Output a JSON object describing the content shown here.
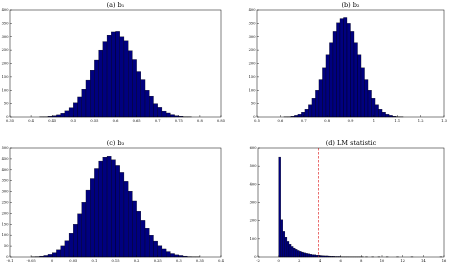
{
  "chart_data": [
    {
      "type": "histogram",
      "title": "(a) b₁",
      "color": "#00007f",
      "edgecolor": "#000000",
      "bins": [
        0.4,
        0.41,
        0.42,
        0.43,
        0.44,
        0.45,
        0.46,
        0.47,
        0.48,
        0.49,
        0.5,
        0.51,
        0.52,
        0.53,
        0.54,
        0.55,
        0.56,
        0.57,
        0.58,
        0.59,
        0.6,
        0.61,
        0.62,
        0.63,
        0.64,
        0.65,
        0.66,
        0.67,
        0.68,
        0.69,
        0.7,
        0.71,
        0.72,
        0.73,
        0.74,
        0.75,
        0.76,
        0.77,
        0.78,
        0.79,
        0.8
      ],
      "values": [
        0,
        0,
        1,
        1,
        3,
        5,
        8,
        14,
        23,
        35,
        53,
        75,
        104,
        138,
        175,
        213,
        250,
        282,
        306,
        318,
        320,
        300,
        285,
        248,
        215,
        170,
        140,
        100,
        78,
        50,
        36,
        22,
        15,
        9,
        5,
        3,
        1,
        1,
        0,
        0
      ],
      "xlim": [
        0.35,
        0.85
      ],
      "xticks": [
        0.35,
        0.4,
        0.45,
        0.5,
        0.55,
        0.6,
        0.65,
        0.7,
        0.75,
        0.8,
        0.85
      ],
      "ylim": [
        0,
        400
      ],
      "yticks": [
        0,
        50,
        100,
        150,
        200,
        250,
        300,
        350,
        400
      ]
    },
    {
      "type": "histogram",
      "title": "(b) b₂",
      "color": "#00007f",
      "edgecolor": "#000000",
      "bins": [
        0.6,
        0.615,
        0.63,
        0.645,
        0.66,
        0.675,
        0.69,
        0.705,
        0.72,
        0.735,
        0.75,
        0.765,
        0.78,
        0.795,
        0.81,
        0.825,
        0.84,
        0.855,
        0.87,
        0.885,
        0.9,
        0.915,
        0.93,
        0.945,
        0.96,
        0.975,
        0.99,
        1.005,
        1.02,
        1.035,
        1.05,
        1.065,
        1.08,
        1.095,
        1.11,
        1.125,
        1.14
      ],
      "values": [
        0,
        1,
        1,
        3,
        6,
        10,
        18,
        29,
        46,
        70,
        100,
        140,
        184,
        233,
        278,
        320,
        352,
        368,
        372,
        350,
        320,
        278,
        233,
        184,
        140,
        100,
        70,
        46,
        29,
        18,
        10,
        6,
        3,
        1,
        1,
        0
      ],
      "xlim": [
        0.5,
        1.3
      ],
      "xticks": [
        0.5,
        0.6,
        0.7,
        0.8,
        0.9,
        1,
        1.1,
        1.2,
        1.3
      ],
      "ylim": [
        0,
        400
      ],
      "yticks": [
        0,
        50,
        100,
        150,
        200,
        250,
        300,
        350,
        400
      ]
    },
    {
      "type": "histogram",
      "title": "(c) b₃",
      "color": "#00007f",
      "edgecolor": "#000000",
      "bins": [
        -0.05,
        -0.04,
        -0.03,
        -0.02,
        -0.01,
        0,
        0.01,
        0.02,
        0.03,
        0.04,
        0.05,
        0.06,
        0.07,
        0.08,
        0.09,
        0.1,
        0.11,
        0.12,
        0.13,
        0.14,
        0.15,
        0.16,
        0.17,
        0.18,
        0.19,
        0.2,
        0.21,
        0.22,
        0.23,
        0.24,
        0.25,
        0.26,
        0.27,
        0.28,
        0.29,
        0.3,
        0.31,
        0.32,
        0.33,
        0.34,
        0.35
      ],
      "values": [
        1,
        2,
        4,
        7,
        12,
        20,
        33,
        51,
        75,
        109,
        150,
        198,
        251,
        307,
        360,
        406,
        440,
        458,
        462,
        446,
        420,
        388,
        347,
        302,
        257,
        210,
        168,
        132,
        100,
        73,
        52,
        37,
        25,
        16,
        10,
        7,
        4,
        2,
        1,
        1
      ],
      "xlim": [
        -0.1,
        0.4
      ],
      "xticks": [
        -0.1,
        -0.05,
        0,
        0.05,
        0.1,
        0.15,
        0.2,
        0.25,
        0.3,
        0.35,
        0.4
      ],
      "ylim": [
        0,
        500
      ],
      "yticks": [
        0,
        50,
        100,
        150,
        200,
        250,
        300,
        350,
        400,
        450,
        500
      ]
    },
    {
      "type": "histogram",
      "title": "(d) LM statistic",
      "color": "#00007f",
      "edgecolor": "#000000",
      "bins": [
        0,
        0.2,
        0.4,
        0.6,
        0.8,
        1,
        1.2,
        1.4,
        1.6,
        1.8,
        2,
        2.2,
        2.4,
        2.6,
        2.8,
        3,
        3.2,
        3.4,
        3.6,
        3.8,
        4,
        4.2,
        4.4,
        4.6,
        4.8,
        5,
        5.2,
        5.4,
        5.6,
        5.8,
        6,
        6.2,
        6.4,
        6.6,
        6.8,
        7,
        7.2,
        7.4,
        7.6,
        7.8,
        8,
        8.2,
        8.4,
        8.6,
        8.8,
        9,
        9.2,
        9.4,
        9.6,
        9.8,
        10,
        10.2,
        10.4,
        10.6,
        10.8,
        11,
        11.2,
        11.4,
        11.6,
        11.8,
        12,
        12.2,
        12.4,
        12.6,
        12.8,
        13,
        13.2,
        13.4,
        13.6,
        13.8,
        14,
        14.2,
        14.4,
        14.6,
        14.8,
        15,
        15.2,
        15.4,
        15.6,
        15.8,
        16
      ],
      "values": [
        550,
        205,
        141,
        109,
        86,
        70,
        58,
        49,
        42,
        36,
        31,
        27,
        23,
        20,
        18,
        15,
        13,
        12,
        10,
        9,
        8,
        7,
        6,
        6,
        5,
        4,
        4,
        3,
        3,
        3,
        2,
        2,
        2,
        2,
        1,
        1,
        1,
        1,
        1,
        1,
        1,
        0,
        1,
        0,
        0,
        1,
        0,
        0,
        1,
        0,
        0,
        0,
        1,
        0,
        0,
        0,
        0,
        1,
        0,
        0,
        0,
        0,
        0,
        0,
        1,
        0,
        0,
        0,
        0,
        0,
        0,
        0,
        0,
        0,
        0,
        0,
        0,
        0,
        1,
        0
      ],
      "vline": {
        "value": 3.84,
        "color": "#e03030",
        "style": "dashed"
      },
      "xlim": [
        -2,
        16
      ],
      "xticks": [
        -2,
        0,
        2,
        4,
        6,
        8,
        10,
        12,
        14,
        16
      ],
      "ylim": [
        0,
        600
      ],
      "yticks": [
        0,
        100,
        200,
        300,
        400,
        500,
        600
      ]
    }
  ]
}
